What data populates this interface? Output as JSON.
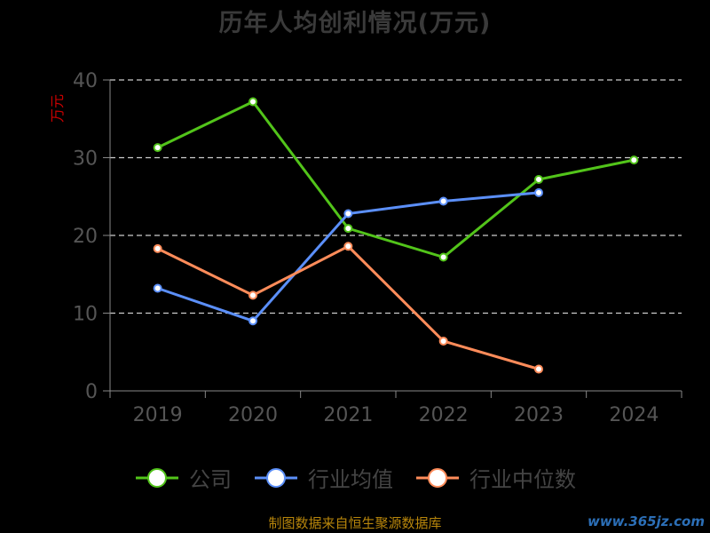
{
  "footer": "制图数据来自恒生聚源数据库",
  "watermark": "www.365jz.com",
  "colors": {
    "公司": "#52c41a",
    "行业均值": "#5b8ff9",
    "行业中位数": "#ff8c5a",
    "grid": "#cccccc",
    "axis": "#888888",
    "unit": "#cc0000"
  },
  "chart_data": {
    "type": "line",
    "title": "历年人均创利情况(万元)",
    "ylabel": "万元",
    "xlabel": "",
    "ylim": [
      0,
      40
    ],
    "yticks": [
      0,
      10,
      20,
      30,
      40
    ],
    "categories": [
      "2019",
      "2020",
      "2021",
      "2022",
      "2023",
      "2024"
    ],
    "grid": true,
    "legend": "bottom",
    "series": [
      {
        "name": "公司",
        "values": [
          31.3,
          37.2,
          20.9,
          17.2,
          27.2,
          29.7
        ]
      },
      {
        "name": "行业均值",
        "values": [
          13.2,
          9.0,
          22.8,
          24.4,
          25.5,
          null
        ]
      },
      {
        "name": "行业中位数",
        "values": [
          18.3,
          12.3,
          18.6,
          6.4,
          2.8,
          null
        ]
      }
    ]
  }
}
